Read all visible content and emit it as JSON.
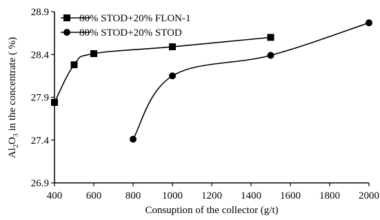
{
  "chart_data": {
    "type": "line",
    "title": "",
    "xlabel": "Consuption of the collector (g/t)",
    "ylabel": {
      "prefix": "Al",
      "sub1": "2",
      "mid": "O",
      "sub2": "3",
      "suffix": " in the concentrate ( %)"
    },
    "xlim": [
      400,
      2000
    ],
    "ylim": [
      26.9,
      28.9
    ],
    "x_ticks": [
      400,
      600,
      800,
      1000,
      1200,
      1400,
      1600,
      1800,
      2000
    ],
    "y_ticks": [
      26.9,
      27.4,
      27.9,
      28.4,
      28.9
    ],
    "legend_position": "top-left",
    "grid": false,
    "series": [
      {
        "name": "80% STOD+20% FLON-1",
        "marker": "square",
        "color": "#000000",
        "points": [
          {
            "x": 400,
            "y": 27.84
          },
          {
            "x": 500,
            "y": 28.28
          },
          {
            "x": 600,
            "y": 28.41
          },
          {
            "x": 1000,
            "y": 28.49
          },
          {
            "x": 1500,
            "y": 28.6
          }
        ]
      },
      {
        "name": "80% STOD+20% STOD",
        "marker": "circle",
        "color": "#000000",
        "points": [
          {
            "x": 800,
            "y": 27.41
          },
          {
            "x": 1000,
            "y": 28.15
          },
          {
            "x": 1500,
            "y": 28.39
          },
          {
            "x": 2000,
            "y": 28.77
          }
        ]
      }
    ]
  }
}
